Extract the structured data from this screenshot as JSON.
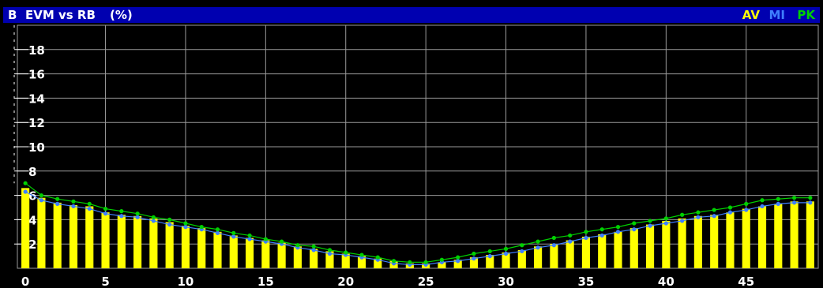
{
  "header": {
    "trace_letter": "B",
    "title": "EVM vs RB",
    "unit": "(%)",
    "trace_av": "AV",
    "trace_mi": "MI",
    "trace_pk": "PK"
  },
  "colors": {
    "background": "#000000",
    "title_bar": "#0000b0",
    "grid": "#9a9a9a",
    "axis_text": "#ffffff",
    "av": "#ffff00",
    "mi": "#3f7fff",
    "pk": "#00d000"
  },
  "chart_data": {
    "type": "bar",
    "title": "EVM vs RB",
    "ylabel": "(%)",
    "xlabel": "",
    "x": [
      0,
      1,
      2,
      3,
      4,
      5,
      6,
      7,
      8,
      9,
      10,
      11,
      12,
      13,
      14,
      15,
      16,
      17,
      18,
      19,
      20,
      21,
      22,
      23,
      24,
      25,
      26,
      27,
      28,
      29,
      30,
      31,
      32,
      33,
      34,
      35,
      36,
      37,
      38,
      39,
      40,
      41,
      42,
      43,
      44,
      45,
      46,
      47,
      48,
      49
    ],
    "xlim": [
      -0.5,
      49.5
    ],
    "ylim": [
      0,
      20
    ],
    "x_ticks": [
      "0",
      "5",
      "10",
      "15",
      "20",
      "25",
      "30",
      "35",
      "40",
      "45"
    ],
    "y_ticks": [
      "2",
      "4",
      "6",
      "8",
      "10",
      "12",
      "14",
      "16",
      "18"
    ],
    "grid": true,
    "series": [
      {
        "name": "AV",
        "type": "bar",
        "values": [
          6.6,
          5.8,
          5.4,
          5.2,
          5.1,
          4.6,
          4.4,
          4.3,
          4.1,
          3.8,
          3.5,
          3.3,
          3.0,
          2.7,
          2.5,
          2.3,
          2.1,
          1.8,
          1.6,
          1.4,
          1.2,
          1.0,
          0.8,
          0.6,
          0.4,
          0.4,
          0.5,
          0.7,
          0.9,
          1.1,
          1.3,
          1.5,
          1.8,
          2.0,
          2.3,
          2.6,
          2.8,
          3.0,
          3.3,
          3.6,
          3.9,
          4.1,
          4.3,
          4.4,
          4.6,
          4.9,
          5.1,
          5.3,
          5.5,
          5.5
        ]
      },
      {
        "name": "MI",
        "type": "line",
        "values": [
          6.3,
          5.6,
          5.3,
          5.1,
          4.9,
          4.5,
          4.3,
          4.2,
          3.9,
          3.6,
          3.4,
          3.2,
          2.9,
          2.6,
          2.4,
          2.2,
          2.0,
          1.7,
          1.5,
          1.2,
          1.1,
          0.9,
          0.7,
          0.4,
          0.3,
          0.3,
          0.5,
          0.6,
          0.8,
          1.0,
          1.2,
          1.4,
          1.7,
          1.9,
          2.2,
          2.5,
          2.7,
          3.0,
          3.2,
          3.5,
          3.7,
          3.9,
          4.2,
          4.3,
          4.6,
          4.8,
          5.1,
          5.3,
          5.4,
          5.4
        ]
      },
      {
        "name": "PK",
        "type": "line",
        "values": [
          7.0,
          6.0,
          5.7,
          5.5,
          5.3,
          4.9,
          4.7,
          4.5,
          4.2,
          4.0,
          3.7,
          3.4,
          3.2,
          2.9,
          2.7,
          2.4,
          2.2,
          1.9,
          1.8,
          1.5,
          1.3,
          1.1,
          0.9,
          0.6,
          0.5,
          0.5,
          0.7,
          0.9,
          1.2,
          1.4,
          1.6,
          1.9,
          2.2,
          2.5,
          2.7,
          3.0,
          3.2,
          3.4,
          3.7,
          3.9,
          4.1,
          4.4,
          4.6,
          4.8,
          5.0,
          5.3,
          5.6,
          5.7,
          5.8,
          5.8
        ]
      }
    ]
  }
}
